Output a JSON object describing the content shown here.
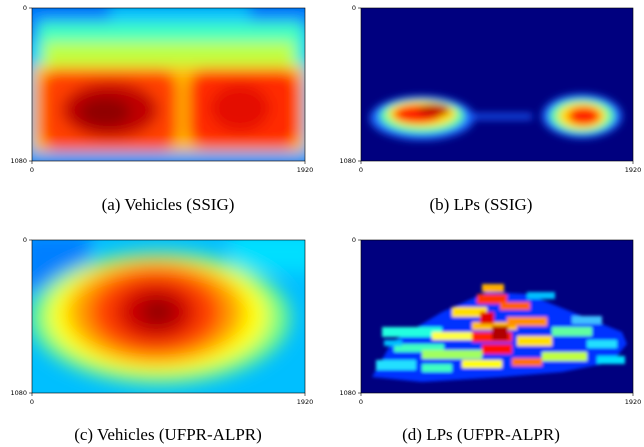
{
  "axis_ticks": {
    "top": "0",
    "bottom": "1080",
    "left": "0",
    "right": "1920"
  },
  "panels": [
    {
      "id": "a",
      "caption": "(a) Vehicles (SSIG)",
      "variant": "vehicles-ssig"
    },
    {
      "id": "b",
      "caption": "(b) LPs (SSIG)",
      "variant": "lps-ssig"
    },
    {
      "id": "c",
      "caption": "(c) Vehicles (UFPR-ALPR)",
      "variant": "vehicles-ufpr"
    },
    {
      "id": "d",
      "caption": "(d) LPs (UFPR-ALPR)",
      "variant": "lps-ufpr"
    }
  ],
  "colors": {
    "background_blue": "#00007f",
    "colormap": "jet"
  }
}
